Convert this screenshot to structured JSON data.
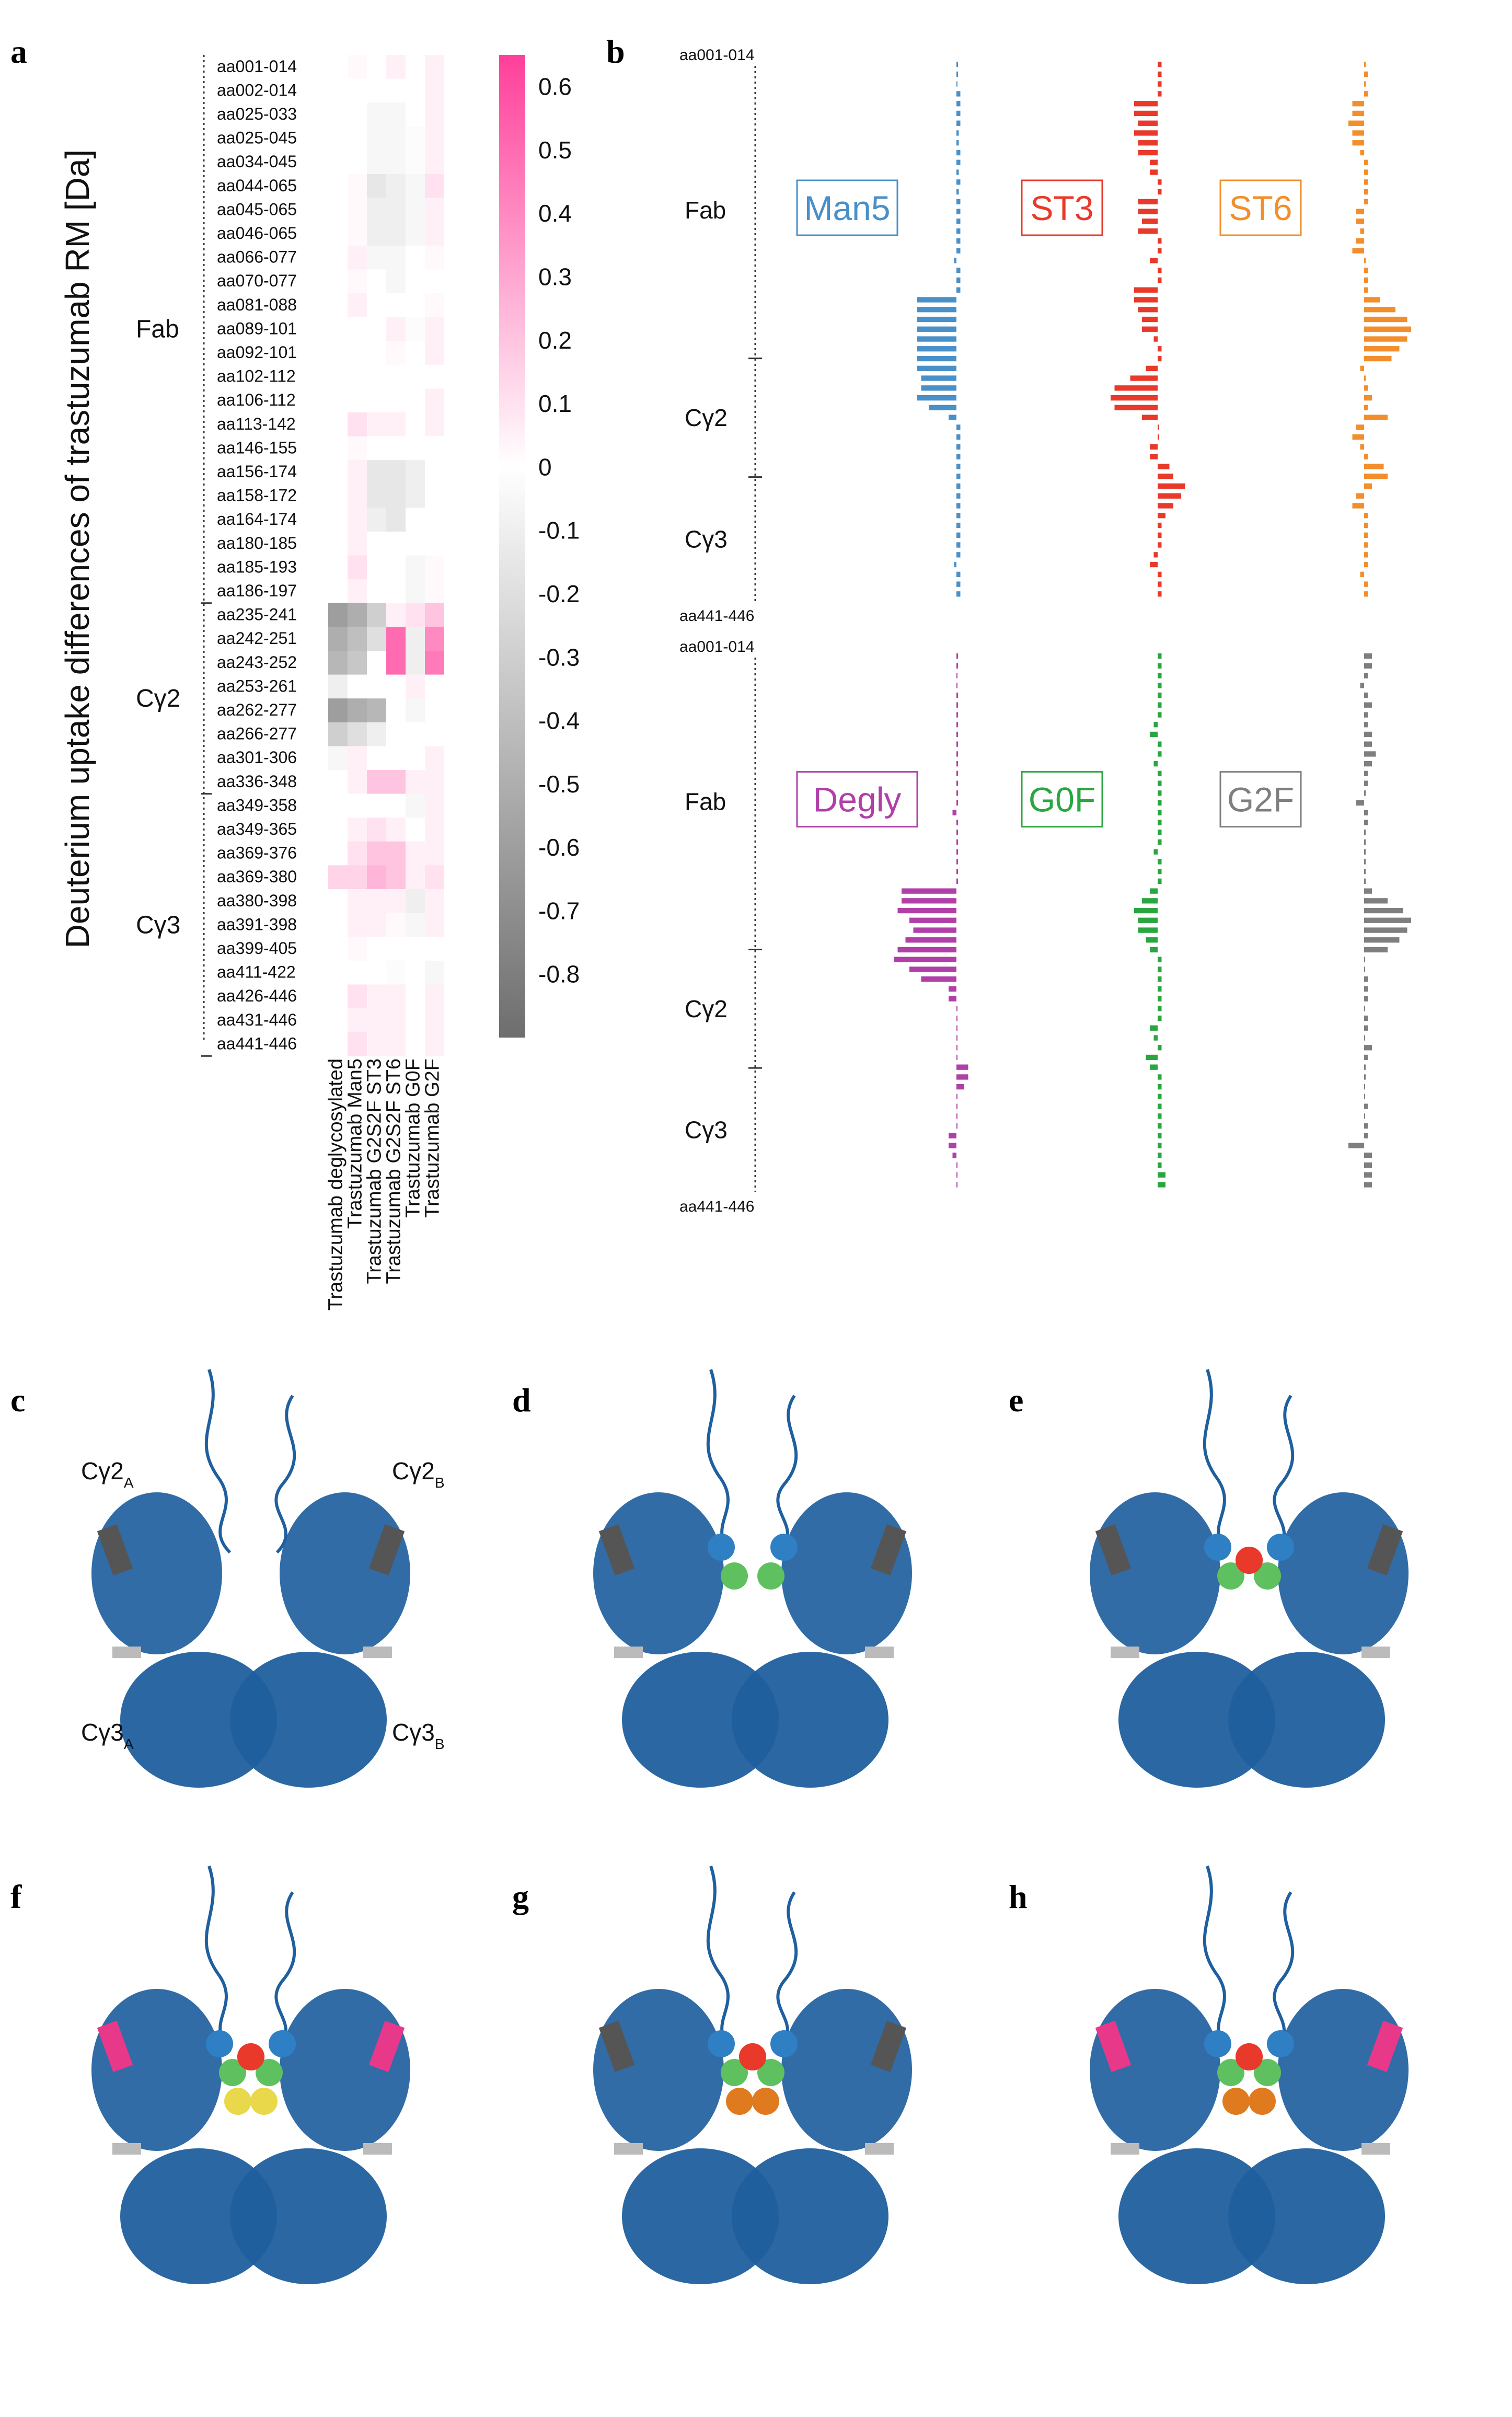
{
  "panel_letters": {
    "a": "a",
    "b": "b",
    "c": "c",
    "d": "d",
    "e": "e",
    "f": "f",
    "g": "g",
    "h": "h"
  },
  "colors": {
    "positive": "#ff3f9a",
    "zero": "#ffffff",
    "negative": "#6e6e6e"
  },
  "chart_data": [
    {
      "type": "heatmap",
      "ylabel": "Deuterium uptake differences of trastuzumab RM [Da]",
      "rows": [
        "aa001-014",
        "aa002-014",
        "aa025-033",
        "aa025-045",
        "aa034-045",
        "aa044-065",
        "aa045-065",
        "aa046-065",
        "aa066-077",
        "aa070-077",
        "aa081-088",
        "aa089-101",
        "aa092-101",
        "aa102-112",
        "aa106-112",
        "aa113-142",
        "aa146-155",
        "aa156-174",
        "aa158-172",
        "aa164-174",
        "aa180-185",
        "aa185-193",
        "aa186-197",
        "aa235-241",
        "aa242-251",
        "aa243-252",
        "aa253-261",
        "aa262-277",
        "aa266-277",
        "aa301-306",
        "aa336-348",
        "aa349-358",
        "aa349-365",
        "aa369-376",
        "aa369-380",
        "aa380-398",
        "aa391-398",
        "aa399-405",
        "aa411-422",
        "aa426-446",
        "aa431-446",
        "aa441-446"
      ],
      "columns": [
        "Trastuzumab deglycosylated",
        "Trastuzumab Man5",
        "Trastuzumab G2S2F ST3",
        "Trastuzumab G2S2F ST6",
        "Trastuzumab G0F",
        "Trastuzumab G2F"
      ],
      "domains": [
        {
          "name": "Fab",
          "first": 0,
          "last": 22
        },
        {
          "name": "Cγ2",
          "first": 23,
          "last": 30
        },
        {
          "name": "Cγ3",
          "first": 31,
          "last": 41
        }
      ],
      "values": [
        [
          0.0,
          0.02,
          0.0,
          0.05,
          0.0,
          0.05
        ],
        [
          0.0,
          0.0,
          0.0,
          0.0,
          0.0,
          0.05
        ],
        [
          0.0,
          0.0,
          -0.05,
          -0.05,
          0.0,
          0.05
        ],
        [
          0.0,
          0.0,
          -0.05,
          -0.05,
          -0.02,
          0.05
        ],
        [
          0.0,
          0.0,
          -0.05,
          -0.05,
          -0.02,
          0.05
        ],
        [
          0.0,
          0.02,
          -0.15,
          -0.1,
          -0.05,
          0.1
        ],
        [
          0.0,
          0.02,
          -0.1,
          -0.1,
          -0.05,
          0.05
        ],
        [
          0.0,
          0.02,
          -0.1,
          -0.1,
          -0.05,
          0.05
        ],
        [
          0.0,
          0.05,
          -0.05,
          -0.05,
          0.0,
          0.02
        ],
        [
          0.0,
          0.02,
          0.0,
          -0.05,
          0.0,
          0.0
        ],
        [
          0.0,
          0.05,
          0.0,
          0.0,
          0.0,
          0.02
        ],
        [
          0.0,
          0.0,
          0.0,
          0.05,
          -0.02,
          0.05
        ],
        [
          0.0,
          0.0,
          0.0,
          0.02,
          0.0,
          0.05
        ],
        [
          0.0,
          0.0,
          0.0,
          0.0,
          0.0,
          0.0
        ],
        [
          0.0,
          0.0,
          0.0,
          0.0,
          0.0,
          0.05
        ],
        [
          0.0,
          0.1,
          0.05,
          0.05,
          0.0,
          0.05
        ],
        [
          0.0,
          0.02,
          0.0,
          0.0,
          0.0,
          0.0
        ],
        [
          0.0,
          0.05,
          -0.15,
          -0.15,
          -0.1,
          0.0
        ],
        [
          0.0,
          0.05,
          -0.15,
          -0.15,
          -0.1,
          0.0
        ],
        [
          0.0,
          0.05,
          -0.1,
          -0.15,
          0.0,
          0.0
        ],
        [
          0.0,
          0.05,
          0.0,
          0.0,
          0.0,
          0.0
        ],
        [
          0.0,
          0.1,
          0.0,
          0.0,
          -0.05,
          0.02
        ],
        [
          0.0,
          0.05,
          0.0,
          0.0,
          -0.05,
          0.02
        ],
        [
          -0.6,
          -0.5,
          -0.3,
          0.05,
          0.1,
          0.2
        ],
        [
          -0.5,
          -0.4,
          -0.2,
          0.5,
          -0.1,
          0.4
        ],
        [
          -0.45,
          -0.35,
          0.0,
          0.5,
          -0.1,
          0.45
        ],
        [
          -0.1,
          0.0,
          0.0,
          0.0,
          0.05,
          0.0
        ],
        [
          -0.6,
          -0.5,
          -0.45,
          0.0,
          -0.05,
          0.0
        ],
        [
          -0.3,
          -0.2,
          -0.1,
          0.0,
          0.0,
          0.0
        ],
        [
          -0.05,
          0.05,
          0.0,
          0.0,
          0.0,
          0.05
        ],
        [
          0.0,
          0.05,
          0.2,
          0.2,
          0.05,
          0.05
        ],
        [
          0.0,
          0.0,
          0.0,
          0.0,
          -0.05,
          0.05
        ],
        [
          0.0,
          0.05,
          0.1,
          0.05,
          0.0,
          0.05
        ],
        [
          0.0,
          0.1,
          0.2,
          0.2,
          0.05,
          0.05
        ],
        [
          0.15,
          0.15,
          0.25,
          0.2,
          0.05,
          0.1
        ],
        [
          0.0,
          0.05,
          0.05,
          0.05,
          -0.1,
          0.05
        ],
        [
          0.0,
          0.05,
          0.05,
          0.02,
          -0.05,
          0.05
        ],
        [
          0.0,
          0.02,
          0.0,
          0.0,
          0.0,
          0.0
        ],
        [
          0.0,
          0.0,
          0.0,
          -0.02,
          0.0,
          -0.05
        ],
        [
          0.0,
          0.1,
          0.05,
          0.05,
          0.0,
          0.05
        ],
        [
          0.0,
          0.05,
          0.05,
          0.05,
          0.0,
          0.05
        ],
        [
          0.0,
          0.1,
          0.05,
          0.05,
          0.0,
          0.05
        ]
      ],
      "colorbar": {
        "min": -0.9,
        "max": 0.65,
        "ticks": [
          0.6,
          0.5,
          0.4,
          0.3,
          0.2,
          0.1,
          0,
          -0.1,
          -0.2,
          -0.3,
          -0.4,
          -0.5,
          -0.6,
          -0.7,
          -0.8
        ]
      }
    },
    {
      "type": "bar",
      "orientation": "horizontal",
      "axis_labels": {
        "top_a": "aa001-014",
        "bottom_a": "aa441-446",
        "top_b": "aa001-014",
        "bottom_b": "aa441-446"
      },
      "domain_labels": [
        "Fab",
        "Cγ2",
        "Cγ3"
      ],
      "series": [
        {
          "name": "Man5",
          "color": "#4a90c8",
          "values": [
            0.02,
            0.02,
            0.0,
            0.05,
            0.05,
            0.05,
            0.05,
            0.03,
            0.03,
            0.05,
            0.05,
            0.03,
            0.05,
            0.03,
            0.05,
            0.05,
            0.05,
            0.05,
            0.05,
            0.05,
            -0.03,
            0.05,
            0.05,
            0.05,
            -0.5,
            -0.5,
            -0.5,
            -0.5,
            -0.5,
            -0.5,
            -0.5,
            -0.5,
            -0.45,
            -0.45,
            -0.5,
            -0.35,
            -0.1,
            0.05,
            0.05,
            0.05,
            0.05,
            0.05,
            0.05,
            0.05,
            0.05,
            0.05,
            0.05,
            0.05,
            0.05,
            0.05,
            0.05,
            -0.03,
            0.05,
            0.05,
            0.05
          ]
        },
        {
          "name": "ST3",
          "color": "#e8392a",
          "values": [
            0.05,
            0.05,
            0.05,
            0.05,
            -0.3,
            -0.3,
            -0.25,
            -0.3,
            -0.25,
            -0.25,
            -0.1,
            -0.1,
            0.05,
            0.05,
            -0.25,
            -0.25,
            -0.2,
            -0.25,
            0.05,
            0.05,
            -0.1,
            0.05,
            0.05,
            -0.3,
            -0.3,
            -0.25,
            -0.2,
            -0.2,
            -0.05,
            0.05,
            0.05,
            -0.15,
            -0.35,
            -0.55,
            -0.6,
            -0.55,
            -0.2,
            0.02,
            0.02,
            -0.1,
            -0.1,
            0.15,
            0.2,
            0.35,
            0.3,
            0.2,
            0.1,
            0.05,
            0.05,
            0.05,
            -0.05,
            -0.1,
            0.05,
            0.05,
            0.05
          ]
        },
        {
          "name": "ST6",
          "color": "#f28e2b",
          "values": [
            0.02,
            0.05,
            0.02,
            0.05,
            -0.15,
            -0.15,
            -0.2,
            -0.15,
            -0.15,
            -0.05,
            0.05,
            0.05,
            0.05,
            0.05,
            0.05,
            -0.1,
            -0.1,
            -0.05,
            -0.1,
            -0.15,
            0.02,
            0.05,
            0.05,
            0.05,
            0.2,
            0.4,
            0.55,
            0.6,
            0.55,
            0.45,
            0.35,
            -0.05,
            0.02,
            0.05,
            0.1,
            0.05,
            0.3,
            -0.1,
            -0.15,
            -0.05,
            0.05,
            0.25,
            0.3,
            0.1,
            -0.1,
            -0.15,
            0.05,
            0.05,
            0.05,
            0.05,
            0.05,
            0.05,
            -0.05,
            0.05,
            0.05
          ]
        },
        {
          "name": "Degly",
          "color": "#b040a8",
          "values": [
            0.02,
            0.02,
            0.0,
            0.0,
            0.02,
            0.02,
            0.02,
            0.02,
            0.02,
            0.02,
            0.02,
            0.02,
            0.02,
            0.02,
            0.02,
            0.02,
            -0.05,
            0.02,
            0.02,
            0.02,
            0.02,
            0.02,
            0.02,
            0.02,
            -0.7,
            -0.7,
            -0.75,
            -0.6,
            -0.55,
            -0.65,
            -0.75,
            -0.8,
            -0.6,
            -0.45,
            -0.1,
            -0.1,
            0.0,
            0.0,
            0.0,
            0.0,
            0.0,
            0.0,
            0.15,
            0.15,
            0.1,
            0.0,
            0.0,
            0.0,
            0.0,
            -0.1,
            -0.1,
            -0.05,
            0.0,
            0.0,
            0.0
          ]
        },
        {
          "name": "G0F",
          "color": "#2aa640",
          "values": [
            0.05,
            0.05,
            0.05,
            0.05,
            0.05,
            0.05,
            0.05,
            -0.05,
            -0.1,
            0.05,
            0.05,
            -0.05,
            0.05,
            0.05,
            0.05,
            0.05,
            0.05,
            0.05,
            0.05,
            0.05,
            -0.05,
            0.05,
            0.05,
            0.05,
            -0.1,
            -0.2,
            -0.3,
            -0.25,
            -0.25,
            -0.15,
            -0.1,
            0.05,
            0.05,
            0.05,
            0.05,
            0.05,
            0.05,
            0.05,
            -0.1,
            -0.05,
            0.05,
            -0.15,
            -0.1,
            0.05,
            0.05,
            0.05,
            0.05,
            0.05,
            0.05,
            0.05,
            0.05,
            0.05,
            0.05,
            0.1,
            0.1
          ]
        },
        {
          "name": "G2F",
          "color": "#7f7f7f",
          "values": [
            0.1,
            0.1,
            0.05,
            -0.05,
            0.05,
            0.1,
            0.05,
            0.05,
            0.1,
            0.1,
            0.15,
            0.1,
            0.05,
            0.05,
            0.02,
            -0.1,
            0.05,
            0.05,
            0.02,
            0.02,
            0.02,
            0.02,
            0.02,
            0.02,
            0.1,
            0.3,
            0.5,
            0.6,
            0.55,
            0.45,
            0.3,
            0.0,
            0.0,
            0.05,
            0.05,
            0.05,
            0.0,
            0.05,
            0.05,
            0.0,
            0.1,
            0.05,
            0.02,
            0.02,
            0.0,
            0.0,
            0.05,
            0.0,
            0.05,
            0.05,
            -0.2,
            0.1,
            0.1,
            0.1,
            0.1
          ]
        }
      ]
    }
  ],
  "structures": {
    "labels_c": {
      "tl": "Cγ2",
      "tl_sub": "A",
      "tr": "Cγ2",
      "tr_sub": "B",
      "bl": "Cγ3",
      "bl_sub": "A",
      "br": "Cγ3",
      "br_sub": "B"
    },
    "panels": [
      {
        "letter": "c",
        "glycan": "none",
        "highlight": "grey"
      },
      {
        "letter": "d",
        "glycan": "man5",
        "highlight": "grey"
      },
      {
        "letter": "e",
        "glycan": "st3",
        "highlight": "grey"
      },
      {
        "letter": "f",
        "glycan": "st6",
        "highlight": "pink"
      },
      {
        "letter": "g",
        "glycan": "g0f",
        "highlight": "grey"
      },
      {
        "letter": "h",
        "glycan": "g2f",
        "highlight": "pink"
      }
    ],
    "protein_color": "#1f5f9e"
  }
}
